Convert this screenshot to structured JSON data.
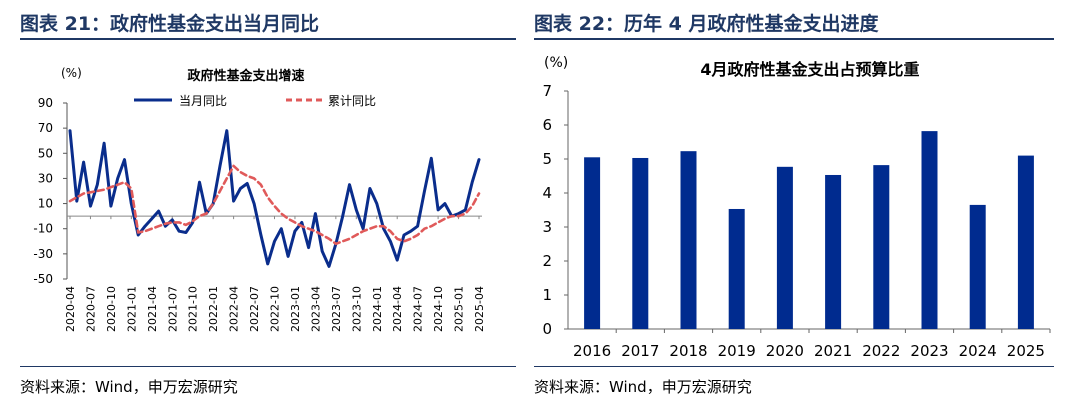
{
  "figures": [
    {
      "title": "图表 21：政府性基金支出当月同比",
      "source": "资料来源：Wind，申万宏源研究"
    },
    {
      "title": "图表 22：历年 4 月政府性基金支出进度",
      "source": "资料来源：Wind，申万宏源研究"
    }
  ],
  "chart_data": [
    {
      "type": "line",
      "title": "政府性基金支出增速",
      "unit_label": "(%)",
      "ylim": [
        -50,
        90
      ],
      "yticks": [
        90,
        70,
        50,
        30,
        10,
        -10,
        -30,
        -50
      ],
      "x": [
        "2020-04",
        "2020-05",
        "2020-06",
        "2020-07",
        "2020-08",
        "2020-09",
        "2020-10",
        "2020-11",
        "2020-12",
        "2021-01",
        "2021-02",
        "2021-03",
        "2021-04",
        "2021-05",
        "2021-06",
        "2021-07",
        "2021-08",
        "2021-09",
        "2021-10",
        "2021-11",
        "2021-12",
        "2022-01",
        "2022-02",
        "2022-03",
        "2022-04",
        "2022-05",
        "2022-06",
        "2022-07",
        "2022-08",
        "2022-09",
        "2022-10",
        "2022-11",
        "2022-12",
        "2023-01",
        "2023-02",
        "2023-03",
        "2023-04",
        "2023-05",
        "2023-06",
        "2023-07",
        "2023-08",
        "2023-09",
        "2023-10",
        "2023-11",
        "2023-12",
        "2024-01",
        "2024-02",
        "2024-03",
        "2024-04",
        "2024-05",
        "2024-06",
        "2024-07",
        "2024-08",
        "2024-09",
        "2024-10",
        "2024-11",
        "2024-12",
        "2025-01",
        "2025-02",
        "2025-03",
        "2025-04"
      ],
      "xtick_labels": [
        "2020-04",
        "2020-07",
        "2020-10",
        "2021-01",
        "2021-04",
        "2021-07",
        "2021-10",
        "2022-01",
        "2022-04",
        "2022-07",
        "2022-10",
        "2023-01",
        "2023-04",
        "2023-07",
        "2023-10",
        "2024-01",
        "2024-04",
        "2024-07",
        "2024-10",
        "2025-01",
        "2025-04"
      ],
      "series": [
        {
          "name": "当月同比",
          "color": "#0a2d8c",
          "style": "solid",
          "values": [
            68,
            12,
            43,
            8,
            25,
            58,
            8,
            30,
            45,
            10,
            -15,
            -8,
            -2,
            4,
            -8,
            -3,
            -12,
            -13,
            -5,
            27,
            2,
            10,
            40,
            68,
            12,
            22,
            26,
            10,
            -15,
            -38,
            -20,
            -10,
            -32,
            -12,
            -5,
            -25,
            2,
            -28,
            -40,
            -22,
            0,
            25,
            5,
            -10,
            22,
            10,
            -10,
            -20,
            -35,
            -15,
            -12,
            -8,
            20,
            46,
            5,
            10,
            0,
            2,
            5,
            27,
            45
          ]
        },
        {
          "name": "累计同比",
          "color": "#e05a5a",
          "style": "dashed",
          "values": [
            12,
            15,
            18,
            19,
            20,
            21,
            23,
            25,
            27,
            22,
            -13,
            -12,
            -10,
            -8,
            -6,
            -5,
            -5,
            -7,
            -4,
            0,
            2,
            10,
            20,
            30,
            40,
            35,
            32,
            30,
            25,
            15,
            8,
            2,
            -2,
            -5,
            -8,
            -10,
            -12,
            -15,
            -18,
            -22,
            -20,
            -18,
            -15,
            -12,
            -10,
            -8,
            -8,
            -12,
            -18,
            -20,
            -18,
            -15,
            -10,
            -8,
            -5,
            -2,
            0,
            0,
            2,
            8,
            18
          ]
        }
      ],
      "legend_position": "top"
    },
    {
      "type": "bar",
      "title": "4月政府性基金支出占预算比重",
      "unit_label": "(%)",
      "ylim": [
        0,
        7
      ],
      "yticks": [
        7,
        6,
        5,
        4,
        3,
        2,
        1,
        0
      ],
      "categories": [
        "2016",
        "2017",
        "2018",
        "2019",
        "2020",
        "2021",
        "2022",
        "2023",
        "2024",
        "2025"
      ],
      "values": [
        5.05,
        5.03,
        5.23,
        3.53,
        4.77,
        4.53,
        4.82,
        5.82,
        3.65,
        5.1
      ],
      "color": "#002b8f"
    }
  ]
}
